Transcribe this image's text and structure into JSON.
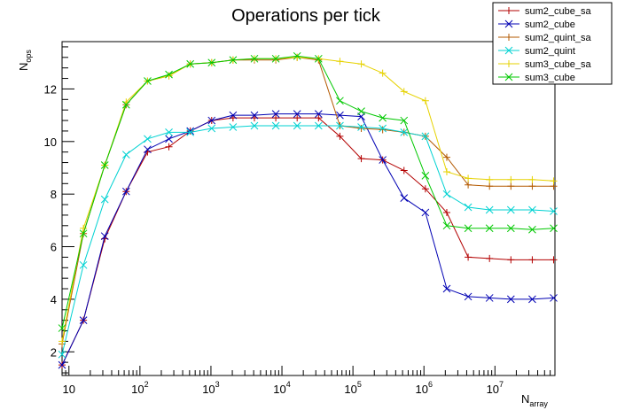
{
  "chart_data": {
    "type": "line",
    "title": "Operations per tick",
    "xlabel": "N",
    "xlabel_sub": "array",
    "ylabel": "N",
    "ylabel_sub": "ops",
    "xscale": "log",
    "xlim": [
      8,
      70000000
    ],
    "ylim": [
      1.1,
      13.8
    ],
    "x_ticks": [
      {
        "base": "10",
        "exp": ""
      },
      {
        "base": "10",
        "exp": "2"
      },
      {
        "base": "10",
        "exp": "3"
      },
      {
        "base": "10",
        "exp": "4"
      },
      {
        "base": "10",
        "exp": "5"
      },
      {
        "base": "10",
        "exp": "6"
      },
      {
        "base": "10",
        "exp": "7"
      }
    ],
    "y_ticks": [
      2,
      4,
      6,
      8,
      10,
      12
    ],
    "grid": false,
    "legend_position": "top-right",
    "x": [
      8,
      16,
      32,
      64,
      128,
      256,
      512,
      1024,
      2048,
      4096,
      8192,
      16384,
      32768,
      65536,
      131072,
      262144,
      524288,
      1048576,
      2097152,
      4194304,
      8388608,
      16777216,
      33554432,
      67108864
    ],
    "series": [
      {
        "name": "sum2_cube_sa",
        "color": "#b30000",
        "marker": "plus",
        "values": [
          1.5,
          3.2,
          6.3,
          8.1,
          9.6,
          9.8,
          10.4,
          10.8,
          10.9,
          10.9,
          10.9,
          10.9,
          10.9,
          10.2,
          9.35,
          9.3,
          8.9,
          8.2,
          7.3,
          5.6,
          5.55,
          5.5,
          5.5,
          5.5
        ]
      },
      {
        "name": "sum2_cube",
        "color": "#0000b3",
        "marker": "cross",
        "values": [
          1.5,
          3.2,
          6.4,
          8.1,
          9.7,
          10.1,
          10.4,
          10.8,
          11.0,
          11.0,
          11.05,
          11.05,
          11.05,
          11.0,
          10.95,
          9.3,
          7.85,
          7.3,
          4.4,
          4.1,
          4.05,
          4.0,
          4.0,
          4.05
        ]
      },
      {
        "name": "sum2_quint_sa",
        "color": "#b35900",
        "marker": "plus",
        "values": [
          2.3,
          6.5,
          9.1,
          11.4,
          12.3,
          12.5,
          12.95,
          13.0,
          13.1,
          13.1,
          13.1,
          13.2,
          13.1,
          10.6,
          10.5,
          10.45,
          10.35,
          10.2,
          9.4,
          8.35,
          8.3,
          8.3,
          8.3,
          8.3
        ]
      },
      {
        "name": "sum2_quint",
        "color": "#00d2d2",
        "marker": "cross",
        "values": [
          1.9,
          5.3,
          7.8,
          9.5,
          10.1,
          10.35,
          10.35,
          10.5,
          10.55,
          10.6,
          10.6,
          10.6,
          10.6,
          10.6,
          10.55,
          10.5,
          10.35,
          10.2,
          8.0,
          7.5,
          7.4,
          7.4,
          7.4,
          7.35
        ]
      },
      {
        "name": "sum3_cube_sa",
        "color": "#e6d200",
        "marker": "plus",
        "values": [
          2.4,
          6.7,
          9.1,
          11.5,
          12.3,
          12.5,
          12.95,
          13.0,
          13.1,
          13.15,
          13.15,
          13.2,
          13.15,
          13.05,
          12.95,
          12.6,
          11.9,
          11.55,
          8.85,
          8.6,
          8.55,
          8.55,
          8.55,
          8.5
        ]
      },
      {
        "name": "sum3_cube",
        "color": "#00c800",
        "marker": "cross",
        "values": [
          2.9,
          6.5,
          9.1,
          11.4,
          12.3,
          12.55,
          12.95,
          13.0,
          13.1,
          13.15,
          13.15,
          13.25,
          13.15,
          11.55,
          11.15,
          10.9,
          10.8,
          8.7,
          6.8,
          6.7,
          6.7,
          6.7,
          6.65,
          6.7
        ]
      }
    ]
  }
}
